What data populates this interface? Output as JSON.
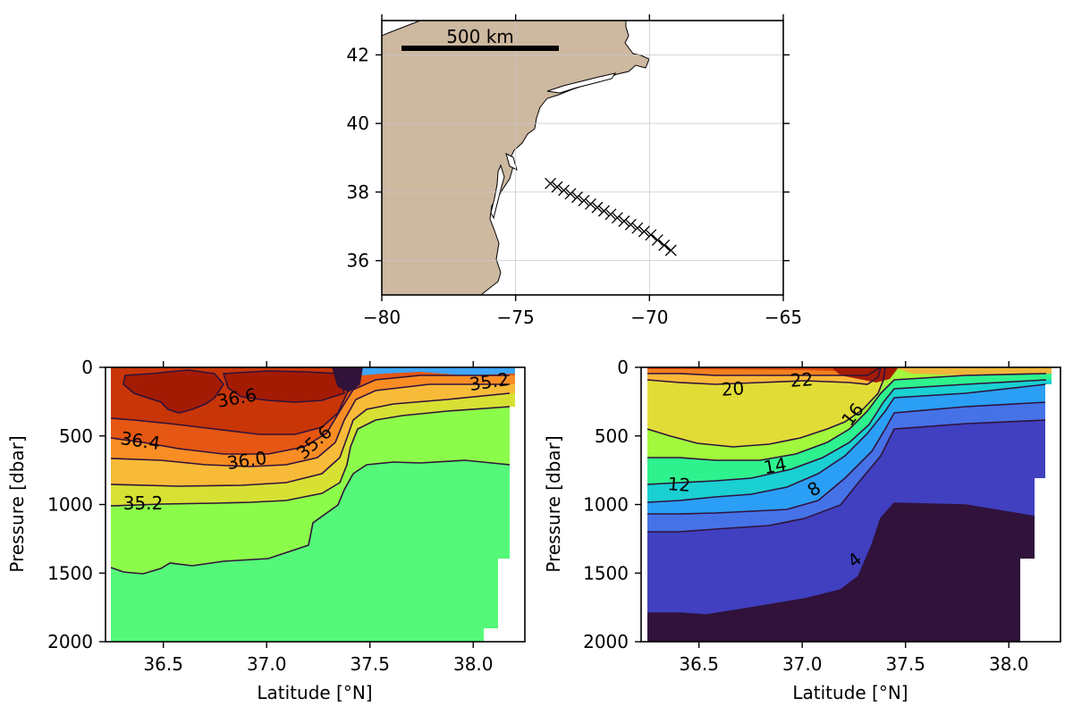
{
  "chart_data": [
    {
      "type": "map",
      "x": [
        -73.7,
        -73.45,
        -73.2,
        -72.95,
        -72.7,
        -72.45,
        -72.2,
        -71.95,
        -71.7,
        -71.45,
        -71.2,
        -70.95,
        -70.7,
        -70.45,
        -70.2,
        -69.95,
        -69.7,
        -69.45,
        -69.2
      ],
      "y": [
        38.25,
        38.15,
        38.05,
        37.95,
        37.85,
        37.75,
        37.65,
        37.55,
        37.45,
        37.35,
        37.25,
        37.15,
        37.05,
        36.95,
        36.85,
        36.75,
        36.6,
        36.45,
        36.3
      ],
      "xlim": [
        -80,
        -65
      ],
      "ylim": [
        35,
        43
      ],
      "xticks": [
        "−80",
        "−75",
        "−70",
        "−65"
      ],
      "yticks": [
        "36",
        "38",
        "40",
        "42"
      ],
      "scale_bar_label": "500 km",
      "grid": true,
      "land_color": "#cdb8a0"
    },
    {
      "type": "contour",
      "quantity": "salinity",
      "xlabel": "Latitude [°N]",
      "ylabel": "Pressure [dbar]",
      "xlim": [
        36.22,
        38.25
      ],
      "ylim": [
        2000,
        0
      ],
      "xticks": [
        "36.5",
        "37.0",
        "37.5",
        "38.0"
      ],
      "yticks": [
        "0",
        "500",
        "1000",
        "1500",
        "2000"
      ],
      "contour_labels": [
        "36.6",
        "36.4",
        "36.0",
        "35.6",
        "35.2",
        "35.2"
      ]
    },
    {
      "type": "contour",
      "quantity": "temperature",
      "xlabel": "Latitude [°N]",
      "ylabel": "Pressure [dbar]",
      "xlim": [
        36.22,
        38.25
      ],
      "ylim": [
        2000,
        0
      ],
      "xticks": [
        "36.5",
        "37.0",
        "37.5",
        "38.0"
      ],
      "yticks": [
        "0",
        "500",
        "1000",
        "1500",
        "2000"
      ],
      "contour_labels": [
        "20",
        "22",
        "16",
        "14",
        "12",
        "8",
        "4"
      ]
    }
  ]
}
